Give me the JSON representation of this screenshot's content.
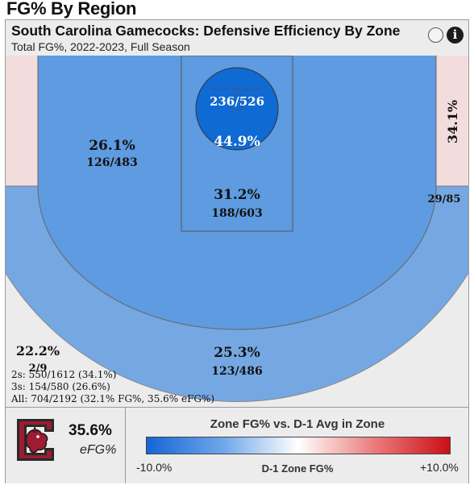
{
  "page": {
    "title": "FG% By Region"
  },
  "header": {
    "title": "South Carolina Gamecocks: Defensive Efficiency By Zone",
    "subtitle": "Total FG%, 2022-2023, Full Season",
    "info_icon": "info-icon",
    "info_glyph": "i",
    "toggle_icon": "circle-toggle-icon"
  },
  "chart_data": {
    "type": "heatmap",
    "title": "South Carolina Gamecocks: Defensive Efficiency By Zone",
    "subtitle": "Total FG%, 2022-2023, Full Season",
    "zones": [
      {
        "name": "Restricted Area",
        "pct": "44.9%",
        "makes_attempts": "236/526",
        "fg_pct": 44.9,
        "color": "#0f6ad3"
      },
      {
        "name": "Paint (Non-RA)",
        "pct": "31.2%",
        "makes_attempts": "188/603",
        "fg_pct": 31.2,
        "color": "#5e9be0"
      },
      {
        "name": "Mid-Range Left",
        "pct": "26.1%",
        "makes_attempts": "126/483",
        "fg_pct": 26.1,
        "color": "#5e9be0"
      },
      {
        "name": "Corner 3 Right",
        "pct": "34.1%",
        "makes_attempts": "29/85",
        "fg_pct": 34.1,
        "color": "#f2dcdc"
      },
      {
        "name": "Corner 3 Left",
        "pct": "",
        "makes_attempts": "",
        "fg_pct": null,
        "color": "#f2dcdc"
      },
      {
        "name": "Above Break 3",
        "pct": "25.3%",
        "makes_attempts": "123/486",
        "fg_pct": 25.3,
        "color": "#75a8e2"
      },
      {
        "name": "Backcourt",
        "pct": "22.2%",
        "makes_attempts": "2/9",
        "fg_pct": 22.2,
        "color": "#ececec"
      }
    ],
    "summary": [
      "2s: 550/1612 (34.1%)",
      "3s: 154/580 (26.6%)",
      "All: 704/2192 (32.1% FG%, 35.6% eFG%)"
    ]
  },
  "footer": {
    "efg_value": "35.6%",
    "efg_label": "eFG%",
    "logo_icon": "gamecock-logo-icon",
    "legend": {
      "title": "Zone FG% vs. D-1 Avg in Zone",
      "min_label": "-10.0%",
      "mid_label": "D-1 Zone FG%",
      "max_label": "+10.0%",
      "min_color": "#1466d6",
      "max_color": "#cc0f16"
    }
  }
}
